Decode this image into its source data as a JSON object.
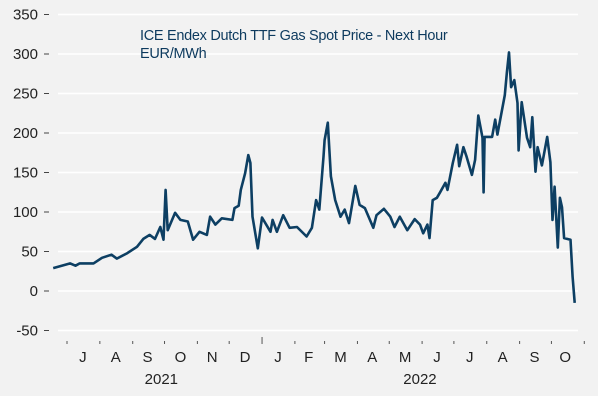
{
  "chart_data": {
    "type": "line",
    "title": "ICE Endex Dutch TTF Gas Spot Price -  Next Hour",
    "subtitle": "EUR/MWh",
    "xlabel": "",
    "ylabel": "",
    "ylim": [
      -50,
      350
    ],
    "yticks": [
      "350",
      "300",
      "250",
      "200",
      "150",
      "100",
      "50",
      "0",
      "-50"
    ],
    "ytick_values": [
      350,
      300,
      250,
      200,
      150,
      100,
      50,
      0,
      -50
    ],
    "grid": true,
    "legend": "none",
    "line_color": "#0d3f63",
    "months": [
      {
        "label": "J",
        "date": "2021-07-16"
      },
      {
        "label": "A",
        "date": "2021-08-16"
      },
      {
        "label": "S",
        "date": "2021-09-15"
      },
      {
        "label": "O",
        "date": "2021-10-16"
      },
      {
        "label": "N",
        "date": "2021-11-15"
      },
      {
        "label": "D",
        "date": "2021-12-16"
      },
      {
        "label": "J",
        "date": "2022-01-16"
      },
      {
        "label": "F",
        "date": "2022-02-14"
      },
      {
        "label": "M",
        "date": "2022-03-16"
      },
      {
        "label": "A",
        "date": "2022-04-15"
      },
      {
        "label": "M",
        "date": "2022-05-16"
      },
      {
        "label": "J",
        "date": "2022-06-15"
      },
      {
        "label": "J",
        "date": "2022-07-16"
      },
      {
        "label": "A",
        "date": "2022-08-16"
      },
      {
        "label": "S",
        "date": "2022-09-15"
      },
      {
        "label": "O",
        "date": "2022-10-14"
      }
    ],
    "years": [
      {
        "label": "2021",
        "date": "2021-09-28"
      },
      {
        "label": "2022",
        "date": "2022-05-30"
      }
    ],
    "x": [
      "2021-06-18",
      "2021-07-04",
      "2021-07-09",
      "2021-07-13",
      "2021-07-26",
      "2021-08-03",
      "2021-08-12",
      "2021-08-17",
      "2021-08-27",
      "2021-09-05",
      "2021-09-11",
      "2021-09-17",
      "2021-09-22",
      "2021-09-27",
      "2021-09-30",
      "2021-10-02",
      "2021-10-04",
      "2021-10-11",
      "2021-10-16",
      "2021-10-23",
      "2021-10-28",
      "2021-11-03",
      "2021-11-10",
      "2021-11-13",
      "2021-11-18",
      "2021-11-24",
      "2021-12-04",
      "2021-12-06",
      "2021-12-10",
      "2021-12-12",
      "2021-12-16",
      "2021-12-19",
      "2021-12-21",
      "2021-12-23",
      "2021-12-28",
      "2022-01-01",
      "2022-01-09",
      "2022-01-11",
      "2022-01-15",
      "2022-01-21",
      "2022-01-27",
      "2022-02-03",
      "2022-02-12",
      "2022-02-17",
      "2022-02-21",
      "2022-02-24",
      "2022-02-28",
      "2022-03-01",
      "2022-03-04",
      "2022-03-07",
      "2022-03-11",
      "2022-03-16",
      "2022-03-20",
      "2022-03-24",
      "2022-03-30",
      "2022-04-03",
      "2022-04-08",
      "2022-04-16",
      "2022-04-19",
      "2022-04-26",
      "2022-05-02",
      "2022-05-06",
      "2022-05-11",
      "2022-05-18",
      "2022-05-25",
      "2022-05-30",
      "2022-06-02",
      "2022-06-06",
      "2022-06-08",
      "2022-06-11",
      "2022-06-15",
      "2022-06-18",
      "2022-06-23",
      "2022-06-25",
      "2022-06-30",
      "2022-07-04",
      "2022-07-06",
      "2022-07-10",
      "2022-07-13",
      "2022-07-18",
      "2022-07-21",
      "2022-07-24",
      "2022-07-28",
      "2022-07-29",
      "2022-07-30",
      "2022-08-06",
      "2022-08-09",
      "2022-08-11",
      "2022-08-18",
      "2022-08-20",
      "2022-08-22",
      "2022-08-24",
      "2022-08-27",
      "2022-08-30",
      "2022-08-31",
      "2022-09-03",
      "2022-09-08",
      "2022-09-11",
      "2022-09-13",
      "2022-09-16",
      "2022-09-18",
      "2022-09-22",
      "2022-09-27",
      "2022-09-30",
      "2022-10-02",
      "2022-10-04",
      "2022-10-07",
      "2022-10-09",
      "2022-10-11",
      "2022-10-13",
      "2022-10-19",
      "2022-10-21",
      "2022-10-23"
    ],
    "series": [
      {
        "values": [
          29,
          35,
          32,
          35,
          35,
          42,
          46,
          41,
          48,
          56,
          66,
          71,
          66,
          81,
          65,
          128,
          77,
          99,
          90,
          88,
          65,
          75,
          71,
          94,
          84,
          92,
          90,
          105,
          108,
          128,
          149,
          172,
          162,
          94,
          54,
          93,
          75,
          90,
          75,
          96,
          80,
          81,
          69,
          80,
          115,
          103,
          170,
          191,
          213,
          145,
          115,
          94,
          103,
          86,
          133,
          109,
          105,
          80,
          96,
          104,
          94,
          81,
          94,
          77,
          91,
          84,
          73,
          84,
          67,
          115,
          118,
          125,
          137,
          128,
          162,
          185,
          158,
          182,
          170,
          147,
          166,
          222,
          194,
          125,
          195,
          195,
          217,
          198,
          248,
          277,
          302,
          258,
          267,
          238,
          178,
          239,
          194,
          182,
          220,
          151,
          182,
          159,
          195,
          163,
          90,
          132,
          55,
          118,
          106,
          67,
          65,
          18,
          -15
        ]
      }
    ]
  }
}
